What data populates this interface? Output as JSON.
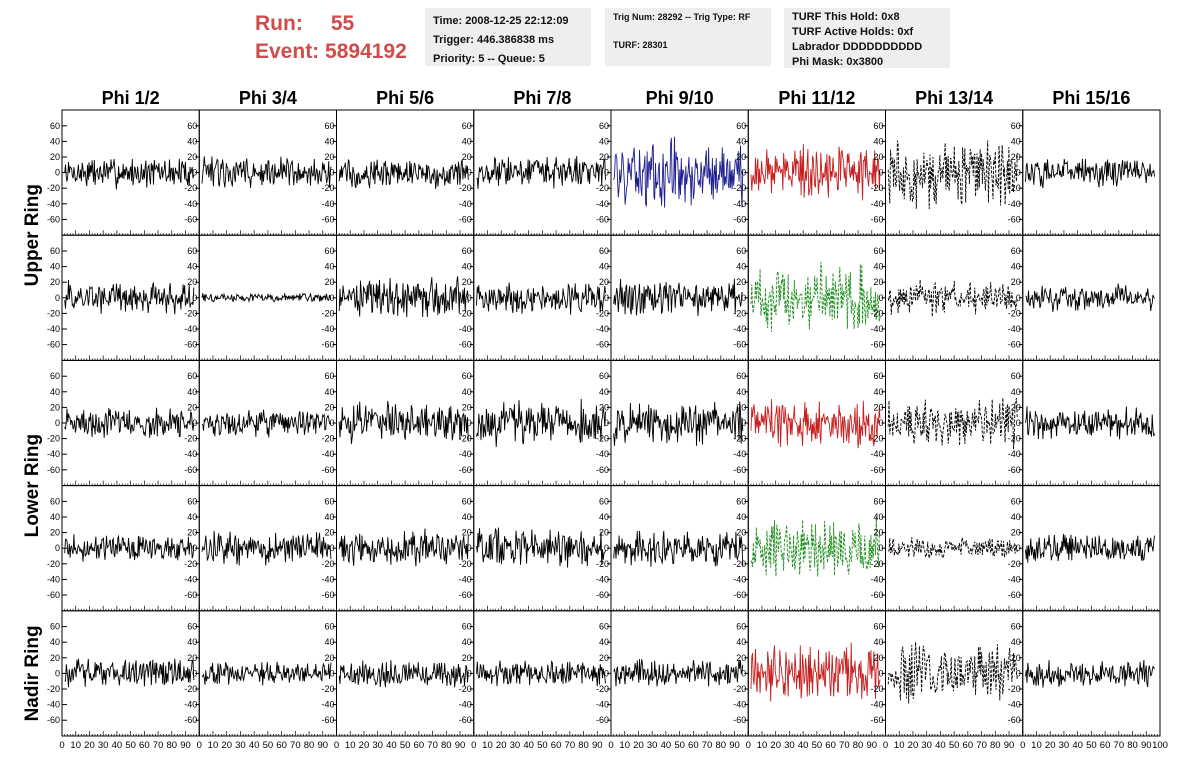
{
  "header": {
    "run_label": "Run:",
    "run_value": "55",
    "event_label": "Event:",
    "event_value": "5894192",
    "time": "Time: 2008-12-25 22:12:09",
    "trigger": "Trigger: 446.386838 ms",
    "priority": "Priority: 5 -- Queue: 5",
    "trig_num": "Trig Num: 28292 -- Trig Type: RF",
    "turf": "TURF: 28301",
    "turf_hold": "TURF This Hold: 0x8",
    "turf_active": "TURF Active Holds: 0xf",
    "labrador": "Labrador DDDDDDDDDD",
    "phi_mask": "Phi Mask: 0x3800"
  },
  "colors": {
    "header_accent": "#d24b4b",
    "trace_default": "#000000",
    "trace_blue": "#1f1f8f",
    "trace_red": "#c81e1e",
    "trace_green": "#1f8f1f",
    "info_box_bg": "#eeeeee"
  },
  "chart_data": {
    "type": "line",
    "title": "",
    "columns": [
      "Phi 1/2",
      "Phi 3/4",
      "Phi 5/6",
      "Phi 7/8",
      "Phi 9/10",
      "Phi 11/12",
      "Phi 13/14",
      "Phi 15/16"
    ],
    "row_groups": [
      "Upper Ring",
      "Lower Ring",
      "Nadir Ring"
    ],
    "rows_per_group": [
      2,
      2,
      1
    ],
    "xlim": [
      0,
      100
    ],
    "ylim": [
      -70,
      70
    ],
    "x_tick_labels": [
      "0",
      "10",
      "20",
      "30",
      "40",
      "50",
      "60",
      "70",
      "80",
      "90",
      "100"
    ],
    "y_tick_labels": [
      "-60",
      "-40",
      "-20",
      "0",
      "20",
      "40",
      "60"
    ],
    "panels": [
      [
        {
          "style": "black",
          "amp": 14
        },
        {
          "style": "black",
          "amp": 14
        },
        {
          "style": "black",
          "amp": 14
        },
        {
          "style": "black",
          "amp": 14
        },
        {
          "style": "blue",
          "amp": 30
        },
        {
          "style": "red",
          "amp": 24
        },
        {
          "style": "dashed",
          "amp": 30
        },
        {
          "style": "black",
          "amp": 14
        }
      ],
      [
        {
          "style": "black",
          "amp": 15
        },
        {
          "style": "black",
          "amp": 4
        },
        {
          "style": "black",
          "amp": 18
        },
        {
          "style": "black",
          "amp": 14
        },
        {
          "style": "black",
          "amp": 16
        },
        {
          "style": "green",
          "amp": 30
        },
        {
          "style": "dashed",
          "amp": 16
        },
        {
          "style": "black",
          "amp": 12
        }
      ],
      [
        {
          "style": "black",
          "amp": 14
        },
        {
          "style": "black",
          "amp": 12
        },
        {
          "style": "black",
          "amp": 18
        },
        {
          "style": "black",
          "amp": 20
        },
        {
          "style": "black",
          "amp": 20
        },
        {
          "style": "red",
          "amp": 22
        },
        {
          "style": "dashed",
          "amp": 22
        },
        {
          "style": "black",
          "amp": 14
        }
      ],
      [
        {
          "style": "black",
          "amp": 12
        },
        {
          "style": "black",
          "amp": 15
        },
        {
          "style": "black",
          "amp": 16
        },
        {
          "style": "black",
          "amp": 18
        },
        {
          "style": "black",
          "amp": 16
        },
        {
          "style": "green",
          "amp": 26
        },
        {
          "style": "dashed",
          "amp": 10
        },
        {
          "style": "black",
          "amp": 12
        }
      ],
      [
        {
          "style": "black",
          "amp": 14
        },
        {
          "style": "black",
          "amp": 10
        },
        {
          "style": "black",
          "amp": 12
        },
        {
          "style": "black",
          "amp": 12
        },
        {
          "style": "black",
          "amp": 12
        },
        {
          "style": "red",
          "amp": 26
        },
        {
          "style": "dashed",
          "amp": 26
        },
        {
          "style": "black",
          "amp": 12
        }
      ]
    ]
  }
}
